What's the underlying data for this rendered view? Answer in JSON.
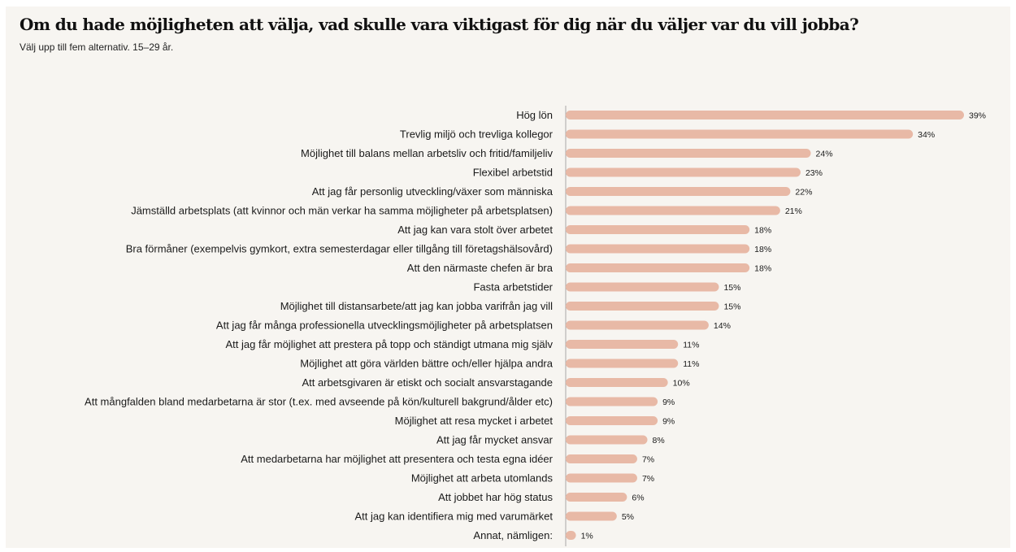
{
  "chart_data": {
    "type": "bar",
    "orientation": "horizontal",
    "title": "Om du hade möjligheten att välja, vad skulle vara viktigast för dig när du väljer var du vill jobba?",
    "subtitle": "Välj upp till fem alternativ. 15–29 år.",
    "categories": [
      "Hög lön",
      "Trevlig miljö och trevliga kollegor",
      "Möjlighet till balans mellan arbetsliv och fritid/familjeliv",
      "Flexibel arbetstid",
      "Att jag får personlig utveckling/växer som människa",
      "Jämställd arbetsplats (att kvinnor och män verkar ha samma möjligheter på arbetsplatsen)",
      "Att jag kan vara stolt över arbetet",
      "Bra förmåner (exempelvis gymkort, extra semesterdagar eller tillgång till företagshälsovård)",
      "Att den närmaste chefen är bra",
      "Fasta arbetstider",
      "Möjlighet till distansarbete/att jag kan jobba varifrån jag vill",
      "Att jag får många professionella utvecklingsmöjligheter på arbetsplatsen",
      "Att jag får möjlighet att prestera på topp och ständigt utmana mig själv",
      "Möjlighet att göra världen bättre och/eller hjälpa andra",
      "Att arbetsgivaren är etiskt och socialt ansvarstagande",
      "Att mångfalden bland medarbetarna är stor (t.ex. med avseende på kön/kulturell bakgrund/ålder etc)",
      "Möjlighet att resa mycket i arbetet",
      "Att jag får mycket ansvar",
      "Att medarbetarna har möjlighet att presentera och testa egna idéer",
      "Möjlighet att arbeta utomlands",
      "Att jobbet har hög status",
      "Att jag kan identifiera mig med varumärket",
      "Annat, nämligen:"
    ],
    "values": [
      39,
      34,
      24,
      23,
      22,
      21,
      18,
      18,
      18,
      15,
      15,
      14,
      11,
      11,
      10,
      9,
      9,
      8,
      7,
      7,
      6,
      5,
      1
    ],
    "value_labels": [
      "39%",
      "34%",
      "24%",
      "23%",
      "22%",
      "21%",
      "18%",
      "18%",
      "18%",
      "15%",
      "15%",
      "14%",
      "11%",
      "11%",
      "10%",
      "9%",
      "9%",
      "8%",
      "7%",
      "7%",
      "6%",
      "5%",
      "1%"
    ],
    "unit": "%",
    "xlim": [
      0,
      40
    ],
    "grid": false,
    "legend": "none",
    "bar_color": "#e8b9a6",
    "axis_color": "#a8a8a8",
    "background_color": "#f7f5f1"
  }
}
